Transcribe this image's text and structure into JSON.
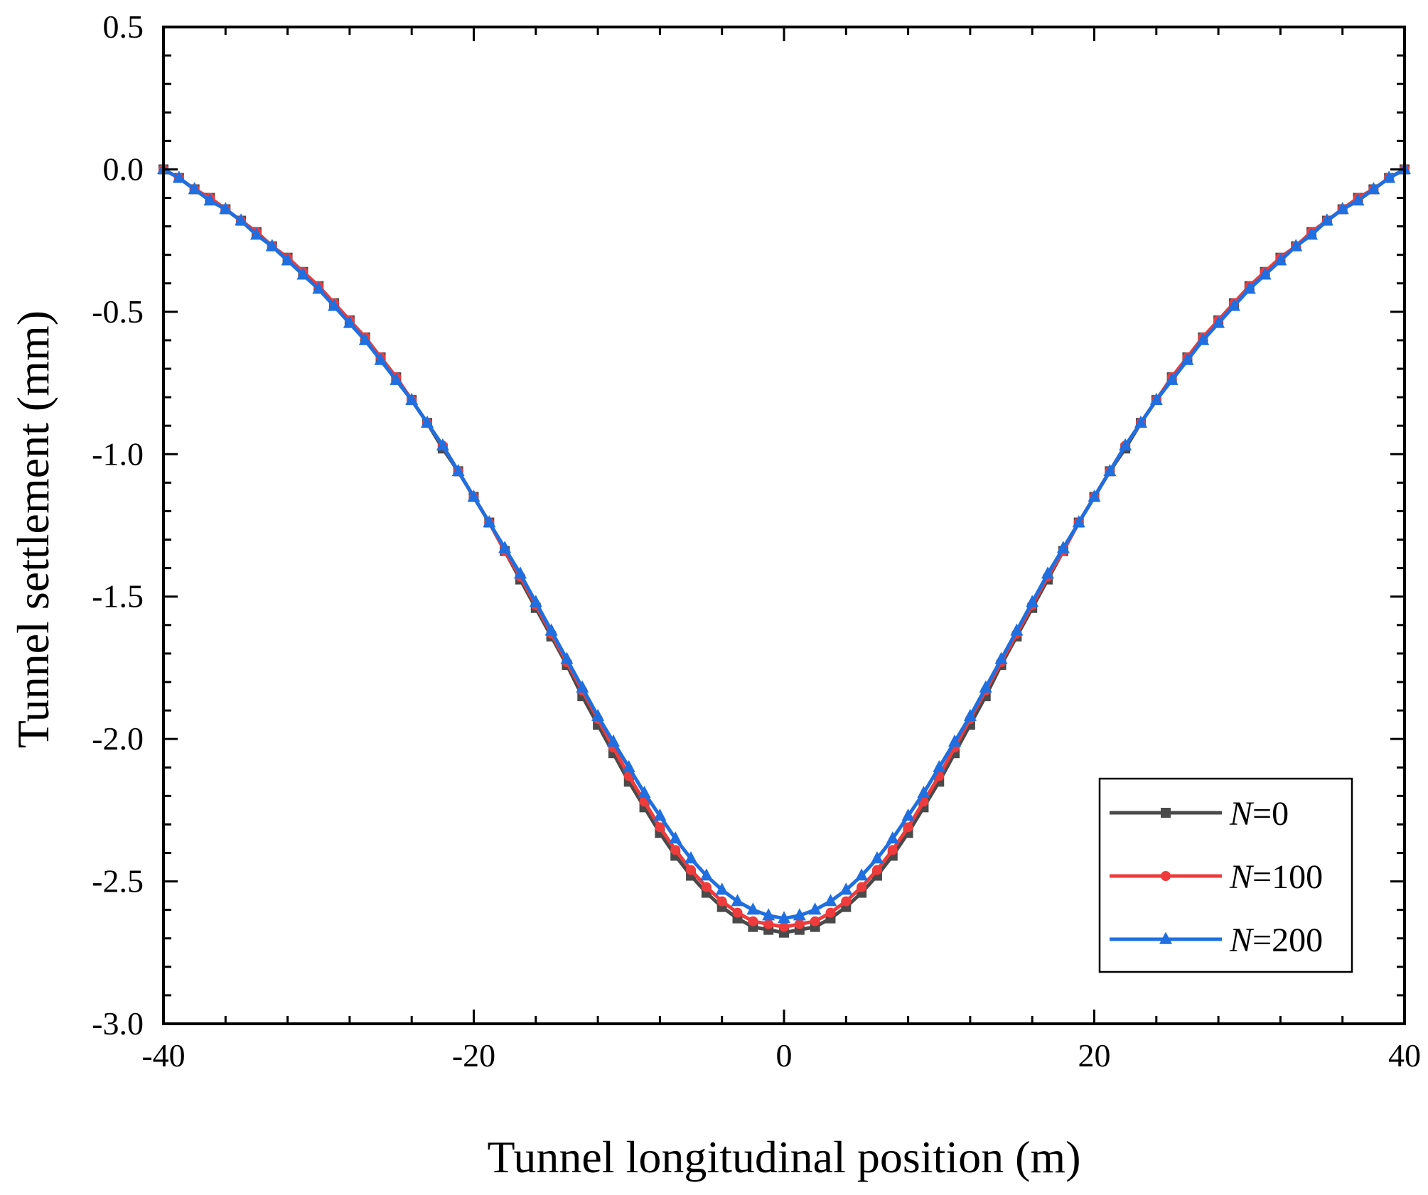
{
  "chart_data": {
    "type": "line",
    "title": "",
    "xlabel": "Tunnel longitudinal position (m)",
    "ylabel": "Tunnel settlement (mm)",
    "xlim": [
      -40,
      40
    ],
    "ylim": [
      -3.0,
      0.5
    ],
    "xticks": [
      -40,
      -20,
      0,
      20,
      40
    ],
    "xtick_labels": [
      "-40",
      "-20",
      "0",
      "20",
      "40"
    ],
    "yticks": [
      0.5,
      0.0,
      -0.5,
      -1.0,
      -1.5,
      -2.0,
      -2.5,
      -3.0
    ],
    "ytick_labels": [
      "0.5",
      "0.0",
      "-0.5",
      "-1.0",
      "-1.5",
      "-2.0",
      "-2.5",
      "-3.0"
    ],
    "grid": false,
    "legend_position": "bottom-right",
    "x": [
      -40,
      -39,
      -38,
      -37,
      -36,
      -35,
      -34,
      -33,
      -32,
      -31,
      -30,
      -29,
      -28,
      -27,
      -26,
      -25,
      -24,
      -23,
      -22,
      -21,
      -20,
      -19,
      -18,
      -17,
      -16,
      -15,
      -14,
      -13,
      -12,
      -11,
      -10,
      -9,
      -8,
      -7,
      -6,
      -5,
      -4,
      -3,
      -2,
      -1,
      0,
      1,
      2,
      3,
      4,
      5,
      6,
      7,
      8,
      9,
      10,
      11,
      12,
      13,
      14,
      15,
      16,
      17,
      18,
      19,
      20,
      21,
      22,
      23,
      24,
      25,
      26,
      27,
      28,
      29,
      30,
      31,
      32,
      33,
      34,
      35,
      36,
      37,
      38,
      39,
      40
    ],
    "series": [
      {
        "name": "N=0",
        "legend_prefix": "N",
        "legend_suffix": "=0",
        "color": "#4a4a4a",
        "marker": "square",
        "values": [
          0.0,
          -0.03,
          -0.07,
          -0.1,
          -0.14,
          -0.18,
          -0.22,
          -0.27,
          -0.31,
          -0.36,
          -0.41,
          -0.47,
          -0.53,
          -0.59,
          -0.66,
          -0.73,
          -0.81,
          -0.89,
          -0.98,
          -1.06,
          -1.15,
          -1.24,
          -1.34,
          -1.44,
          -1.54,
          -1.64,
          -1.74,
          -1.85,
          -1.95,
          -2.05,
          -2.15,
          -2.24,
          -2.33,
          -2.41,
          -2.48,
          -2.54,
          -2.59,
          -2.63,
          -2.66,
          -2.67,
          -2.68,
          -2.67,
          -2.66,
          -2.63,
          -2.59,
          -2.54,
          -2.48,
          -2.41,
          -2.33,
          -2.24,
          -2.15,
          -2.05,
          -1.95,
          -1.85,
          -1.74,
          -1.64,
          -1.54,
          -1.44,
          -1.34,
          -1.24,
          -1.15,
          -1.06,
          -0.98,
          -0.89,
          -0.81,
          -0.73,
          -0.66,
          -0.59,
          -0.53,
          -0.47,
          -0.41,
          -0.36,
          -0.31,
          -0.27,
          -0.22,
          -0.18,
          -0.14,
          -0.1,
          -0.07,
          -0.03,
          0.0
        ]
      },
      {
        "name": "N=100",
        "legend_prefix": "N",
        "legend_suffix": "=100",
        "color": "#ee3b3b",
        "marker": "circle",
        "values": [
          0.0,
          -0.03,
          -0.07,
          -0.1,
          -0.14,
          -0.18,
          -0.22,
          -0.27,
          -0.31,
          -0.36,
          -0.41,
          -0.47,
          -0.53,
          -0.59,
          -0.66,
          -0.73,
          -0.81,
          -0.89,
          -0.97,
          -1.06,
          -1.15,
          -1.24,
          -1.34,
          -1.43,
          -1.53,
          -1.63,
          -1.73,
          -1.83,
          -1.93,
          -2.03,
          -2.13,
          -2.22,
          -2.31,
          -2.39,
          -2.46,
          -2.52,
          -2.57,
          -2.61,
          -2.64,
          -2.65,
          -2.66,
          -2.65,
          -2.64,
          -2.61,
          -2.57,
          -2.52,
          -2.46,
          -2.39,
          -2.31,
          -2.22,
          -2.13,
          -2.03,
          -1.93,
          -1.83,
          -1.73,
          -1.63,
          -1.53,
          -1.43,
          -1.34,
          -1.24,
          -1.15,
          -1.06,
          -0.97,
          -0.89,
          -0.81,
          -0.73,
          -0.66,
          -0.59,
          -0.53,
          -0.47,
          -0.41,
          -0.36,
          -0.31,
          -0.27,
          -0.22,
          -0.18,
          -0.14,
          -0.1,
          -0.07,
          -0.03,
          0.0
        ]
      },
      {
        "name": "N=200",
        "legend_prefix": "N",
        "legend_suffix": "=200",
        "color": "#1f6fe0",
        "marker": "triangle",
        "values": [
          0.0,
          -0.03,
          -0.07,
          -0.11,
          -0.14,
          -0.18,
          -0.23,
          -0.27,
          -0.32,
          -0.37,
          -0.42,
          -0.48,
          -0.54,
          -0.6,
          -0.67,
          -0.74,
          -0.81,
          -0.89,
          -0.97,
          -1.06,
          -1.15,
          -1.24,
          -1.33,
          -1.42,
          -1.52,
          -1.62,
          -1.72,
          -1.82,
          -1.92,
          -2.01,
          -2.1,
          -2.19,
          -2.27,
          -2.35,
          -2.42,
          -2.48,
          -2.53,
          -2.57,
          -2.6,
          -2.62,
          -2.63,
          -2.62,
          -2.6,
          -2.57,
          -2.53,
          -2.48,
          -2.42,
          -2.35,
          -2.27,
          -2.19,
          -2.1,
          -2.01,
          -1.92,
          -1.82,
          -1.72,
          -1.62,
          -1.52,
          -1.42,
          -1.33,
          -1.24,
          -1.15,
          -1.06,
          -0.97,
          -0.89,
          -0.81,
          -0.74,
          -0.67,
          -0.6,
          -0.54,
          -0.48,
          -0.42,
          -0.37,
          -0.32,
          -0.27,
          -0.23,
          -0.18,
          -0.14,
          -0.11,
          -0.07,
          -0.03,
          0.0
        ]
      }
    ]
  }
}
